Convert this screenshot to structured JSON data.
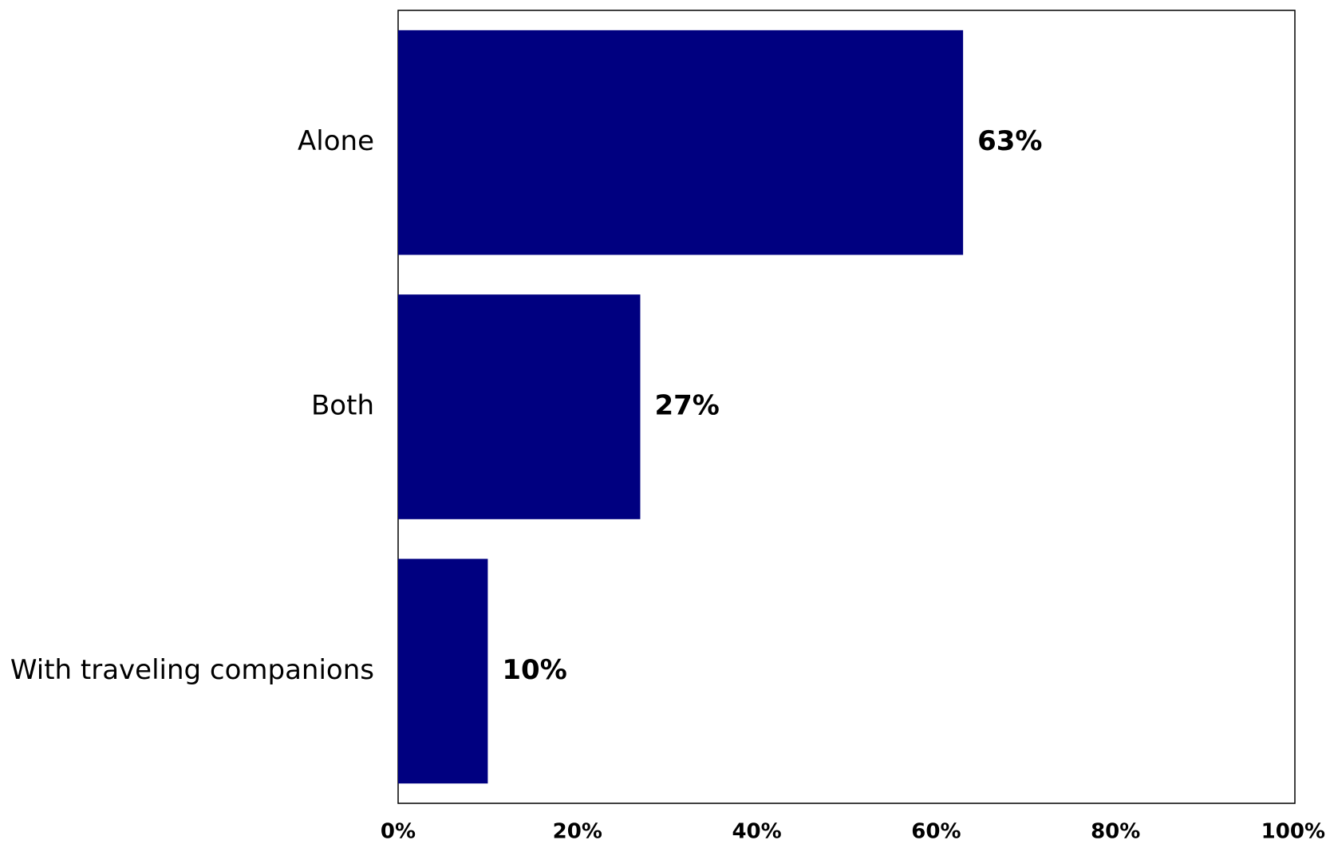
{
  "chart_data": {
    "type": "bar",
    "orientation": "horizontal",
    "categories": [
      "Alone",
      "Both",
      "With traveling companions"
    ],
    "values": [
      63,
      27,
      10
    ],
    "value_labels": [
      "63%",
      "27%",
      "10%"
    ],
    "xlim": [
      0,
      100
    ],
    "x_ticks": [
      0,
      20,
      40,
      60,
      80,
      100
    ],
    "x_tick_labels": [
      "0%",
      "20%",
      "40%",
      "60%",
      "80%",
      "100%"
    ],
    "title": "",
    "xlabel": "",
    "ylabel": "",
    "grid": false,
    "legend": "none",
    "bar_color": "#000080"
  }
}
